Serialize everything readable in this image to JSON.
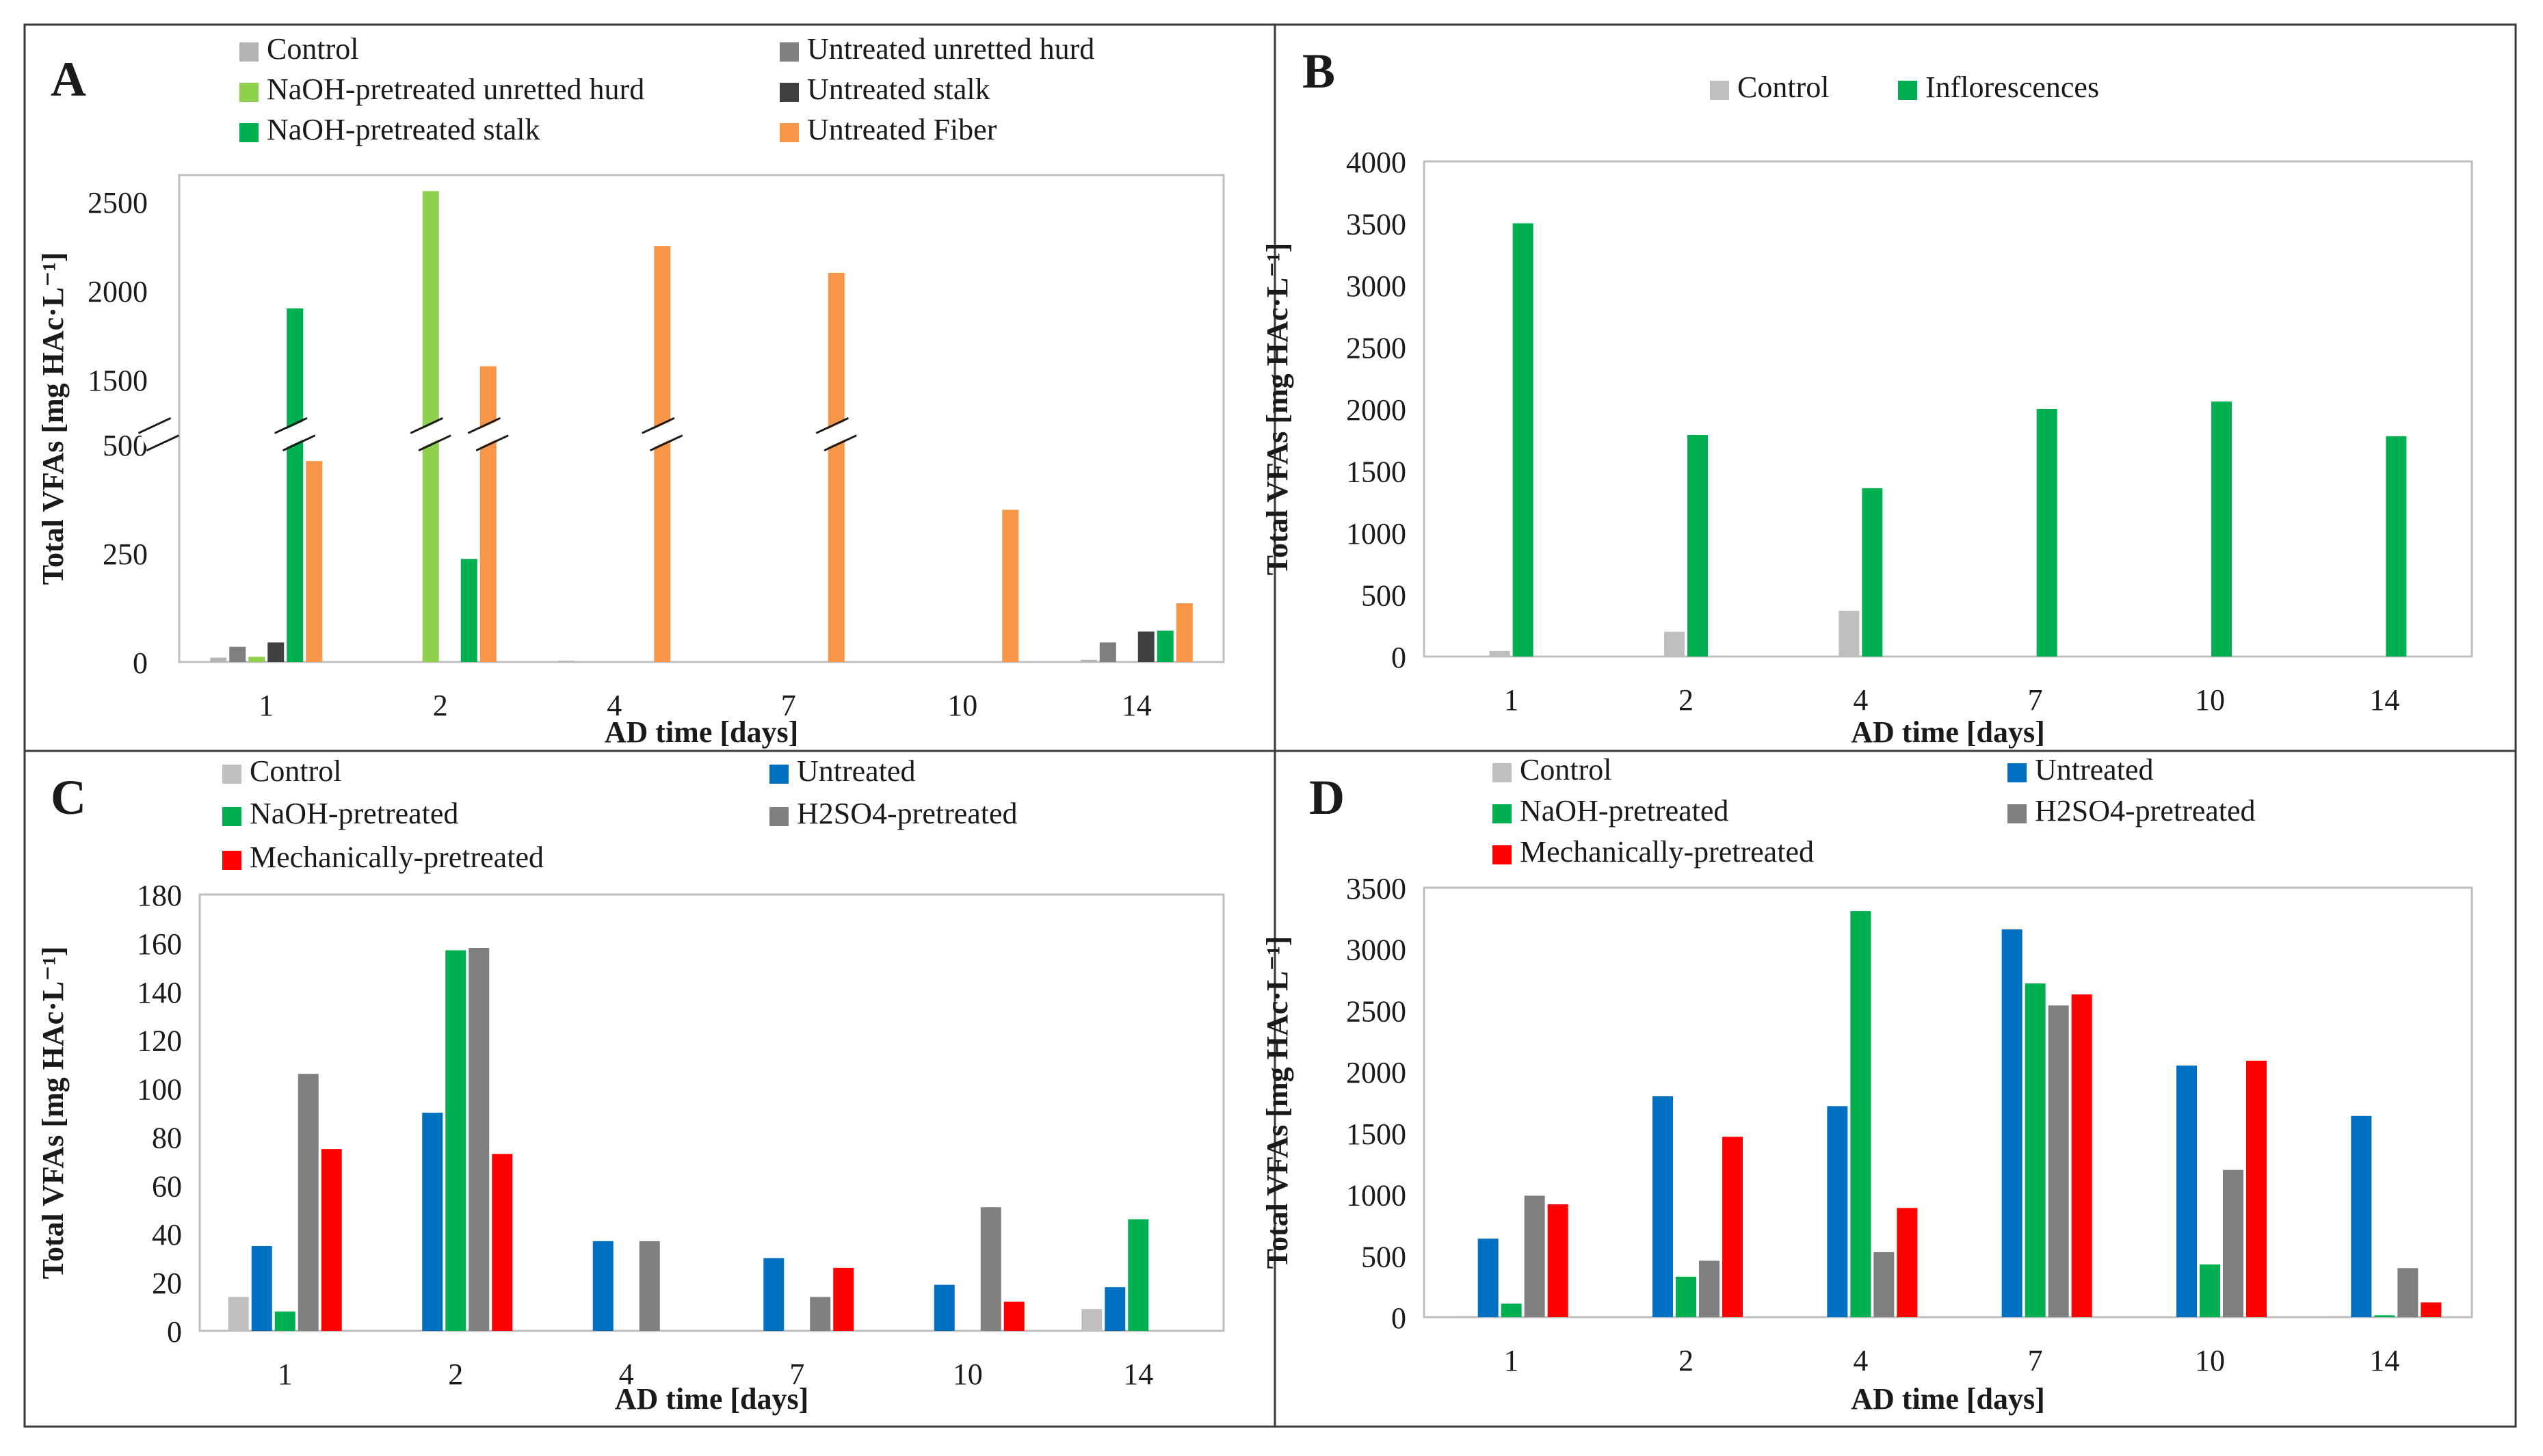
{
  "x_title": "AD time [days]",
  "y_title": "Total VFAs [mg HAc·L⁻¹]",
  "chart_data": [
    {
      "panel": "A",
      "type": "bar",
      "broken_axis": true,
      "categories": [
        "1",
        "2",
        "4",
        "7",
        "10",
        "14"
      ],
      "lower_ylim": [
        0,
        500
      ],
      "lower_ticks": [
        0,
        250,
        500
      ],
      "upper_ylim": [
        1250,
        2650
      ],
      "upper_ticks": [
        1500,
        2000,
        2500
      ],
      "series": [
        {
          "name": "Control",
          "color": "#b4b4b4",
          "values": [
            10,
            0,
            3,
            0,
            0,
            5
          ]
        },
        {
          "name": "Untreated unretted hurd",
          "color": "#7f7f7f",
          "values": [
            35,
            0,
            0,
            0,
            0,
            45
          ]
        },
        {
          "name": "NaOH-pretreated unretted hurd",
          "color": "#8fd14f",
          "values": [
            12,
            2560,
            0,
            0,
            0,
            0
          ]
        },
        {
          "name": "Untreated stalk",
          "color": "#404040",
          "values": [
            45,
            0,
            0,
            0,
            0,
            70
          ]
        },
        {
          "name": "NaOH-pretreated stalk",
          "color": "#00b050",
          "values": [
            1900,
            237,
            0,
            0,
            0,
            72
          ]
        },
        {
          "name": "Untreated Fiber",
          "color": "#f79646",
          "values": [
            462,
            1575,
            2250,
            2100,
            350,
            135
          ]
        }
      ]
    },
    {
      "panel": "B",
      "type": "bar",
      "categories": [
        "1",
        "2",
        "4",
        "7",
        "10",
        "14"
      ],
      "ylim": [
        0,
        4000
      ],
      "yticks": [
        0,
        500,
        1000,
        1500,
        2000,
        2500,
        3000,
        3500,
        4000
      ],
      "series": [
        {
          "name": "Control",
          "color": "#bfbfbf",
          "values": [
            45,
            200,
            370,
            0,
            0,
            0
          ]
        },
        {
          "name": "Inflorescences",
          "color": "#00b050",
          "values": [
            3500,
            1790,
            1360,
            2000,
            2060,
            1780
          ]
        }
      ]
    },
    {
      "panel": "C",
      "type": "bar",
      "categories": [
        "1",
        "2",
        "4",
        "7",
        "10",
        "14"
      ],
      "ylim": [
        0,
        180
      ],
      "yticks": [
        0,
        20,
        40,
        60,
        80,
        100,
        120,
        140,
        160,
        180
      ],
      "series": [
        {
          "name": "Control",
          "color": "#bfbfbf",
          "values": [
            14,
            0,
            0,
            0,
            0,
            9
          ]
        },
        {
          "name": "Untreated",
          "color": "#0070c0",
          "values": [
            35,
            90,
            37,
            30,
            19,
            18
          ]
        },
        {
          "name": "NaOH-pretreated",
          "color": "#00b050",
          "values": [
            8,
            157,
            0,
            0,
            0,
            46
          ]
        },
        {
          "name": "H2SO4-pretreated",
          "color": "#808080",
          "values": [
            106,
            158,
            37,
            14,
            51,
            0
          ]
        },
        {
          "name": "Mechanically-pretreated",
          "color": "#ff0000",
          "values": [
            75,
            73,
            0,
            26,
            12,
            0
          ]
        }
      ]
    },
    {
      "panel": "D",
      "type": "bar",
      "categories": [
        "1",
        "2",
        "4",
        "7",
        "10",
        "14"
      ],
      "ylim": [
        0,
        3500
      ],
      "yticks": [
        0,
        500,
        1000,
        1500,
        2000,
        2500,
        3000,
        3500
      ],
      "series": [
        {
          "name": "Control",
          "color": "#bfbfbf",
          "values": [
            10,
            0,
            0,
            0,
            0,
            10
          ]
        },
        {
          "name": "Untreated",
          "color": "#0070c0",
          "values": [
            640,
            1800,
            1720,
            3160,
            2050,
            1640
          ]
        },
        {
          "name": "NaOH-pretreated",
          "color": "#00b050",
          "values": [
            110,
            330,
            3310,
            2720,
            430,
            15
          ]
        },
        {
          "name": "H2SO4-pretreated",
          "color": "#808080",
          "values": [
            990,
            460,
            530,
            2540,
            1200,
            400
          ]
        },
        {
          "name": "Mechanically-pretreated",
          "color": "#ff0000",
          "values": [
            920,
            1470,
            890,
            2630,
            2090,
            120
          ]
        }
      ]
    }
  ]
}
